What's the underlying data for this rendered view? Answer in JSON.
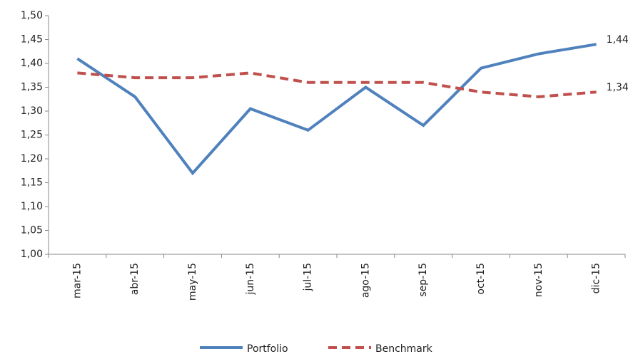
{
  "chart_data": {
    "type": "line",
    "categories": [
      "mar-15",
      "abr-15",
      "may-15",
      "jun-15",
      "jul-15",
      "ago-15",
      "sep-15",
      "oct-15",
      "nov-15",
      "dic-15"
    ],
    "series": [
      {
        "name": "Portfolio",
        "color": "#4f81bd",
        "values": [
          1.41,
          1.33,
          1.17,
          1.305,
          1.26,
          1.35,
          1.27,
          1.39,
          1.42,
          1.44
        ],
        "value_labels": [
          null,
          null,
          null,
          null,
          null,
          null,
          null,
          null,
          null,
          "1,44"
        ]
      },
      {
        "name": "Benchmark",
        "color": "#c0504d",
        "dash": true,
        "values": [
          1.38,
          1.37,
          1.37,
          1.38,
          1.36,
          1.36,
          1.36,
          1.34,
          1.33,
          1.34
        ],
        "value_labels": [
          null,
          null,
          null,
          null,
          null,
          null,
          null,
          null,
          null,
          "1,34"
        ]
      }
    ],
    "ylim": [
      1.0,
      1.5
    ],
    "yticks": [
      {
        "value": 1.0,
        "label": "1,00"
      },
      {
        "value": 1.05,
        "label": "1,05"
      },
      {
        "value": 1.1,
        "label": "1,10"
      },
      {
        "value": 1.15,
        "label": "1,15"
      },
      {
        "value": 1.2,
        "label": "1,20"
      },
      {
        "value": 1.25,
        "label": "1,25"
      },
      {
        "value": 1.3,
        "label": "1,30"
      },
      {
        "value": 1.35,
        "label": "1,35"
      },
      {
        "value": 1.4,
        "label": "1,40"
      },
      {
        "value": 1.45,
        "label": "1,45"
      },
      {
        "value": 1.5,
        "label": "1,50"
      }
    ],
    "grid": false,
    "legend": "bottom"
  }
}
